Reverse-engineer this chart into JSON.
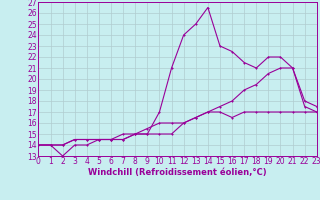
{
  "title": "",
  "xlabel": "Windchill (Refroidissement éolien,°C)",
  "xlim": [
    0,
    23
  ],
  "ylim": [
    13,
    27
  ],
  "xticks": [
    0,
    1,
    2,
    3,
    4,
    5,
    6,
    7,
    8,
    9,
    10,
    11,
    12,
    13,
    14,
    15,
    16,
    17,
    18,
    19,
    20,
    21,
    22,
    23
  ],
  "yticks": [
    13,
    14,
    15,
    16,
    17,
    18,
    19,
    20,
    21,
    22,
    23,
    24,
    25,
    26,
    27
  ],
  "bg_color": "#c8eef0",
  "grid_color": "#b0ccd0",
  "line_color": "#990099",
  "line1_x": [
    0,
    1,
    2,
    3,
    4,
    5,
    6,
    7,
    8,
    9,
    10,
    11,
    12,
    13,
    14,
    15,
    16,
    17,
    18,
    19,
    20,
    21,
    22,
    23
  ],
  "line1_y": [
    14,
    14,
    14,
    14.5,
    14.5,
    14.5,
    14.5,
    14.5,
    15,
    15,
    17,
    21,
    24,
    25,
    26.5,
    23,
    22.5,
    21.5,
    21,
    22,
    22,
    21,
    18,
    17.5
  ],
  "line2_x": [
    0,
    1,
    2,
    3,
    4,
    5,
    6,
    7,
    8,
    9,
    10,
    11,
    12,
    13,
    14,
    15,
    16,
    17,
    18,
    19,
    20,
    21,
    22,
    23
  ],
  "line2_y": [
    14,
    14,
    14,
    14.5,
    14.5,
    14.5,
    14.5,
    14.5,
    15,
    15,
    15,
    15,
    16,
    16.5,
    17,
    17.5,
    18,
    19,
    19.5,
    20.5,
    21,
    21,
    17.5,
    17
  ],
  "line3_x": [
    0,
    1,
    2,
    3,
    4,
    5,
    6,
    7,
    8,
    9,
    10,
    11,
    12,
    13,
    14,
    15,
    16,
    17,
    18,
    19,
    20,
    21,
    22,
    23
  ],
  "line3_y": [
    14,
    14,
    13,
    14,
    14,
    14.5,
    14.5,
    15,
    15,
    15.5,
    16,
    16,
    16,
    16.5,
    17,
    17,
    16.5,
    17,
    17,
    17,
    17,
    17,
    17,
    17
  ],
  "tick_fontsize": 5.5,
  "xlabel_fontsize": 6.0,
  "lw": 0.8,
  "ms": 2.0
}
